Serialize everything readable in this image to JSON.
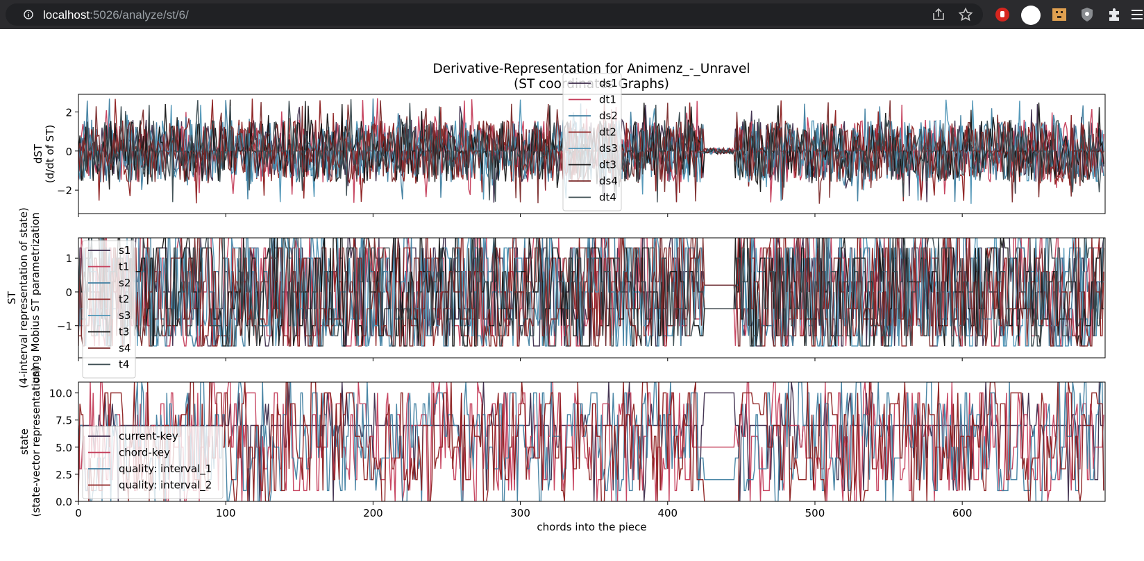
{
  "browser": {
    "url_host": "localhost",
    "url_path": ":5026/analyze/st/6/",
    "icons": [
      "info-icon",
      "share-icon",
      "star-icon",
      "red-hand-extension-icon",
      "profile-circle-icon",
      "face-extension-icon",
      "shield-extension-icon",
      "puzzle-extensions-icon",
      "menu-icon"
    ]
  },
  "colors": {
    "ds1": "#3b2a4a",
    "dt1": "#c43d5a",
    "ds2": "#3f7ea0",
    "dt2": "#8b1c1c",
    "ds3": "#4d93b5",
    "dt3": "#151515",
    "ds4": "#7a2a2a",
    "dt4": "#3a4a4f",
    "s1": "#3b2a4a",
    "t1": "#c43d5a",
    "s2": "#3f7ea0",
    "t2": "#8b1c1c",
    "s3": "#4d93b5",
    "t3": "#151515",
    "s4": "#7a2a2a",
    "t4": "#3a4a4f",
    "current-key": "#3b2a4a",
    "chord-key": "#c43d5a",
    "quality: interval_1": "#3f7ea0",
    "quality: interval_2": "#8b1c1c"
  },
  "chart_data": [
    {
      "type": "line",
      "title": "Derivative-Representation for Animenz_-_Unravel\n(ST coordinates Graphs)",
      "xlabel": "",
      "ylabel": "dST\n(d/dt of ST)",
      "xlim": [
        0,
        697
      ],
      "ylim": [
        -3.2,
        2.9
      ],
      "yticks": [
        -2,
        0,
        2
      ],
      "yticklabels": [
        "−2",
        "0",
        "2"
      ],
      "legend": "top-center",
      "series_names": [
        "ds1",
        "dt1",
        "ds2",
        "dt2",
        "ds3",
        "dt3",
        "ds4",
        "dt4"
      ],
      "value_range": [
        -2.9,
        2.7
      ],
      "note_quiet_region": [
        425,
        445
      ]
    },
    {
      "type": "line",
      "xlabel": "",
      "ylabel": "ST\n(4-interval representation of state)\nusing Mobius ST parametrization",
      "xlim": [
        0,
        697
      ],
      "ylim": [
        -1.95,
        1.6
      ],
      "yticks": [
        -1,
        0,
        1
      ],
      "yticklabels": [
        "−1",
        "0",
        "1"
      ],
      "legend": "top-left",
      "series_names": [
        "s1",
        "t1",
        "s2",
        "t2",
        "s3",
        "t3",
        "s4",
        "t4"
      ],
      "value_range": [
        -1.8,
        1.6
      ]
    },
    {
      "type": "line",
      "xlabel": "chords into the piece",
      "ylabel": "state\n(state-vector representation)",
      "xlim": [
        0,
        697
      ],
      "ylim": [
        0,
        11
      ],
      "xticks": [
        0,
        100,
        200,
        300,
        400,
        500,
        600
      ],
      "xticklabels": [
        "0",
        "100",
        "200",
        "300",
        "400",
        "500",
        "600"
      ],
      "yticks": [
        0,
        2.5,
        5,
        7.5,
        10
      ],
      "yticklabels": [
        "0.0",
        "2.5",
        "5.0",
        "7.5",
        "10.0"
      ],
      "legend": "bottom-left",
      "series_names": [
        "current-key",
        "chord-key",
        "quality: interval_1",
        "quality: interval_2"
      ],
      "value_range": [
        0,
        11
      ]
    }
  ]
}
